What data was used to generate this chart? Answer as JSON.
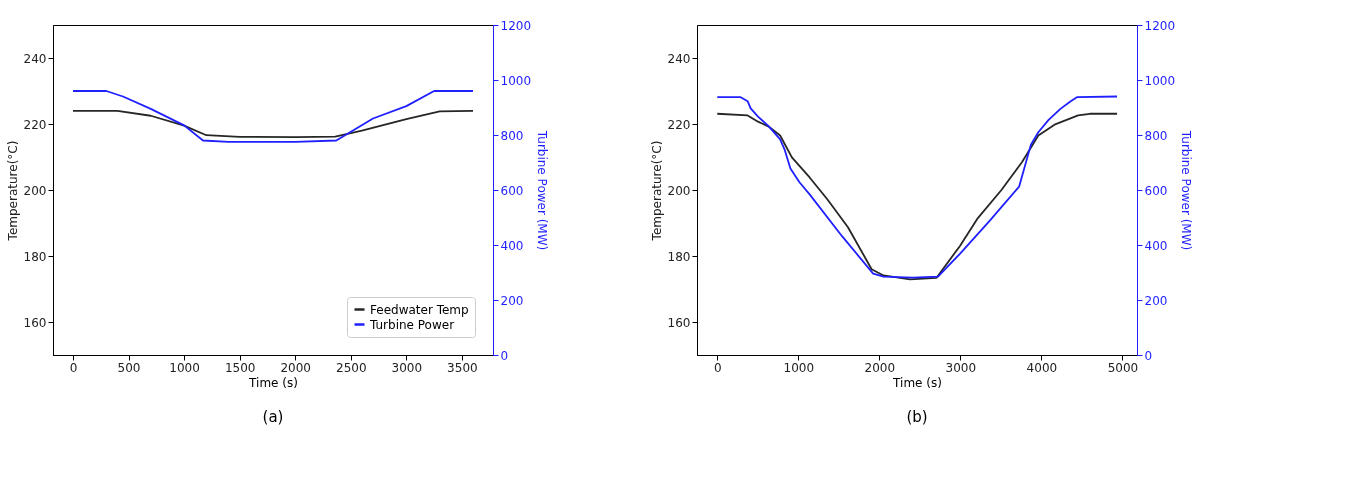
{
  "chart_data": [
    {
      "type": "line",
      "title": "(a)",
      "xlabel": "Time (s)",
      "ylabel": "Temperature(°C)",
      "y2label": "Turbine Power (MW)",
      "xlim": [
        -180,
        3780
      ],
      "xticks": [
        0,
        500,
        1000,
        1500,
        2000,
        2500,
        3000,
        3500
      ],
      "ylim": [
        150,
        250
      ],
      "yticks": [
        160,
        180,
        200,
        220,
        240
      ],
      "y2lim": [
        0,
        1200
      ],
      "y2ticks": [
        0,
        200,
        400,
        600,
        800,
        1000,
        1200
      ],
      "grid": false,
      "legend": "bottom right",
      "series": [
        {
          "name": "Feedwater Temp",
          "color": "#262626",
          "x": [
            0,
            400,
            700,
            1000,
            1200,
            1500,
            2000,
            2360,
            2600,
            3000,
            3300,
            3600
          ],
          "values": [
            224,
            224,
            222.5,
            219.5,
            216.6,
            216.1,
            216,
            216.2,
            218,
            221.5,
            223.8,
            224
          ]
        },
        {
          "name": "Turbine Power",
          "color": "#1f1fff",
          "axis": "y2",
          "x": [
            0,
            300,
            450,
            700,
            1000,
            1170,
            1400,
            2000,
            2370,
            2700,
            3000,
            3250,
            3600
          ],
          "values": [
            960,
            960,
            940,
            895,
            835,
            780,
            775,
            775,
            780,
            860,
            905,
            960,
            960
          ]
        }
      ]
    },
    {
      "type": "line",
      "title": "(b)",
      "xlabel": "Time (s)",
      "ylabel": "Temperature(°C)",
      "y2label": "Turbine Power (MW)",
      "xlim": [
        -250,
        5180
      ],
      "xticks": [
        0,
        1000,
        2000,
        3000,
        4000,
        5000
      ],
      "ylim": [
        150,
        250
      ],
      "yticks": [
        160,
        180,
        200,
        220,
        240
      ],
      "y2lim": [
        0,
        1200
      ],
      "y2ticks": [
        0,
        200,
        400,
        600,
        800,
        1000,
        1200
      ],
      "grid": false,
      "series": [
        {
          "color": "#262626",
          "x": [
            0,
            375,
            503,
            630,
            776,
            921,
            1140,
            1358,
            1613,
            1905,
            2051,
            2378,
            2706,
            2997,
            3216,
            3507,
            3762,
            3962,
            4162,
            4453,
            4599,
            4934
          ],
          "values": [
            223.1,
            222.6,
            220.7,
            219.3,
            216.5,
            209.9,
            203.8,
            197.2,
            188.7,
            176,
            174.1,
            172.9,
            173.4,
            183.1,
            191.5,
            200,
            208.5,
            216.5,
            219.8,
            222.6,
            223.1,
            223.1
          ]
        },
        {
          "color": "#1f1fff",
          "axis": "y2",
          "x": [
            0,
            284,
            375,
            412,
            503,
            630,
            776,
            830,
            903,
            1012,
            1140,
            1540,
            1924,
            2051,
            2414,
            2724,
            2997,
            3361,
            3725,
            3871,
            3962,
            4089,
            4235,
            4362,
            4443,
            4934
          ],
          "values": [
            938,
            938,
            923,
            897,
            867,
            833,
            784,
            748,
            678,
            629,
            584,
            432,
            296,
            285,
            281,
            285,
            369,
            488,
            612,
            765,
            810,
            855,
            895,
            923,
            938,
            940
          ]
        }
      ]
    }
  ]
}
